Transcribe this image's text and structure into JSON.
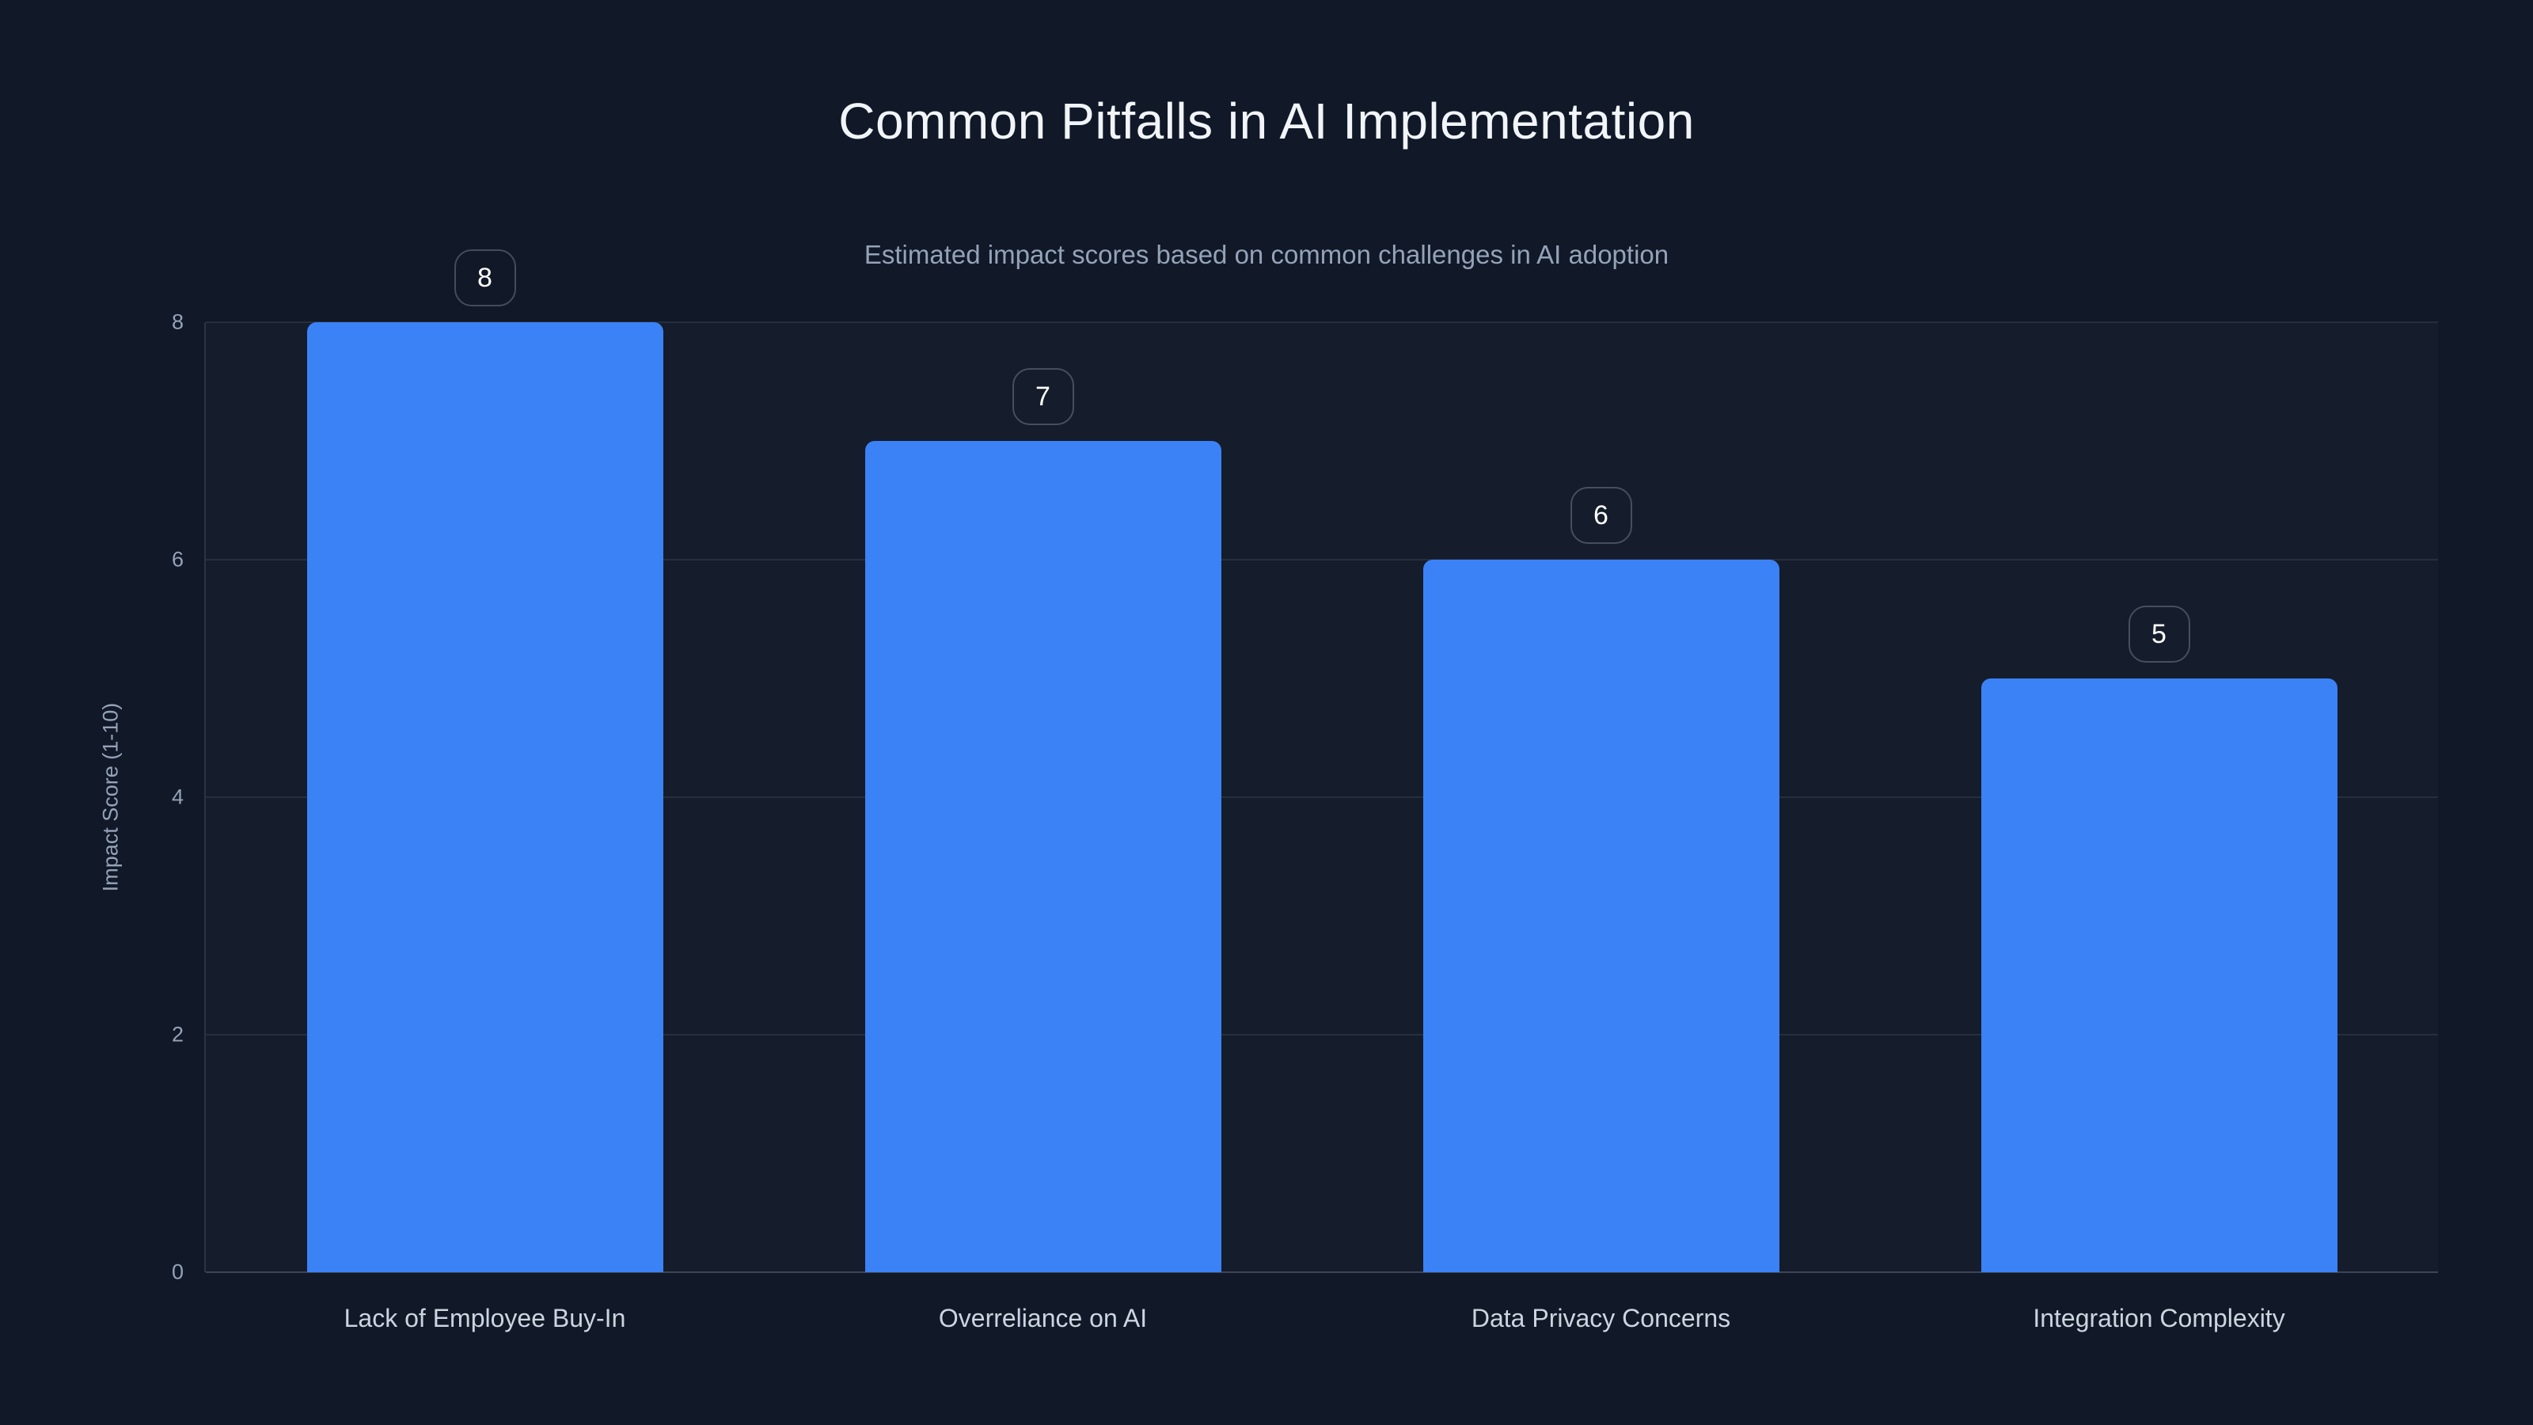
{
  "chart": {
    "title": "Common Pitfalls in AI Implementation",
    "subtitle": "Estimated impact scores based on common challenges in AI adoption",
    "chart_data": {
      "type": "bar",
      "categories": [
        "Lack of Employee Buy-In",
        "Overreliance on AI",
        "Data Privacy Concerns",
        "Integration Complexity"
      ],
      "values": [
        8,
        7,
        6,
        5
      ],
      "value_labels": [
        "8",
        "7",
        "6",
        "5"
      ],
      "title": "Common Pitfalls in AI Implementation",
      "xlabel": "",
      "ylabel": "Impact Score (1-10)",
      "ylim": [
        0,
        8
      ],
      "yticks": [
        0,
        2,
        4,
        6,
        8
      ],
      "grid": "horizontal",
      "legend": "none",
      "bar_color": "#3b82f6",
      "background_color": "#111827",
      "title_color": "#f1f5f9",
      "subtitle_color": "#94a3b8",
      "tick_color": "#94a3b8",
      "category_label_color": "#cbd5e1",
      "badge_border_color": "#3f495c",
      "badge_text_color": "#ffffff"
    }
  }
}
